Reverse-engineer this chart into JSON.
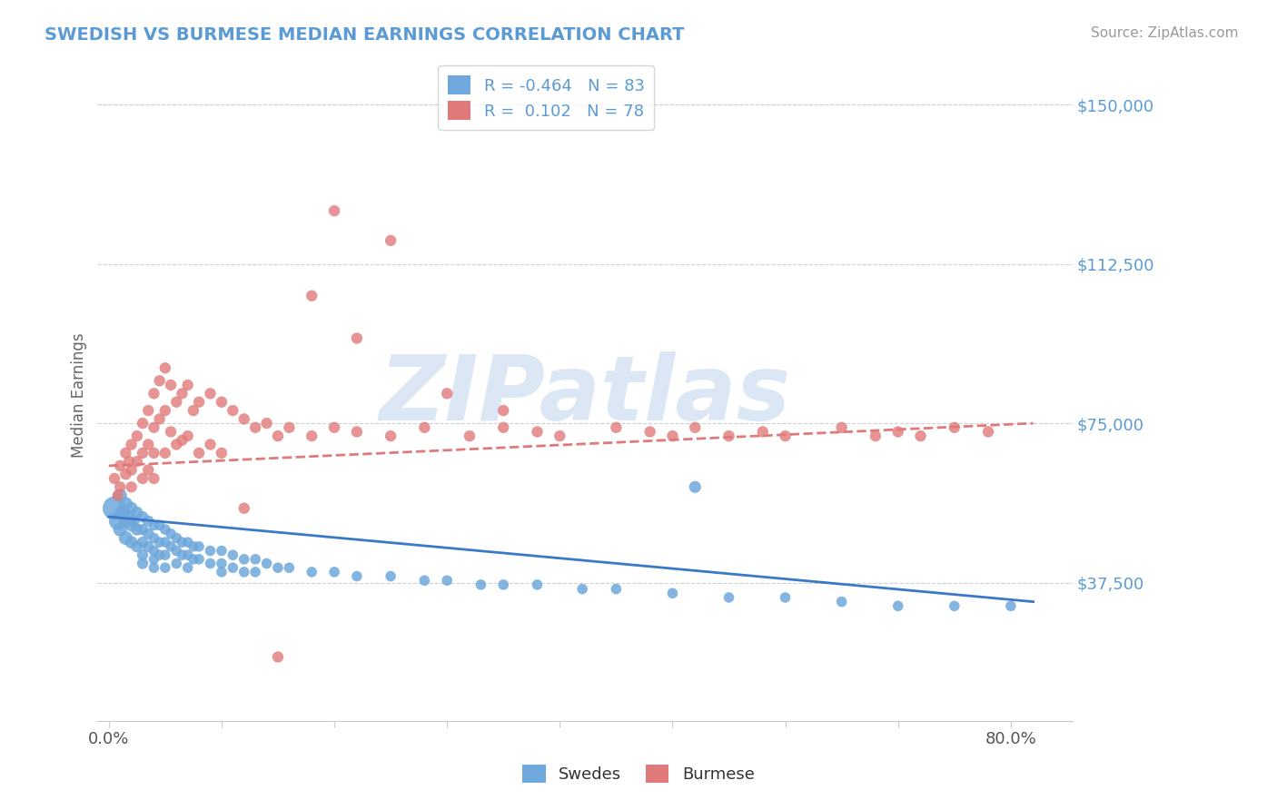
{
  "title": "SWEDISH VS BURMESE MEDIAN EARNINGS CORRELATION CHART",
  "source_text": "Source: ZipAtlas.com",
  "ylabel": "Median Earnings",
  "xtick_labels": [
    "0.0%",
    "",
    "",
    "",
    "",
    "",
    "",
    "",
    "80.0%"
  ],
  "xticks": [
    0.0,
    0.1,
    0.2,
    0.3,
    0.4,
    0.5,
    0.6,
    0.7,
    0.8
  ],
  "xmin": -0.01,
  "xmax": 0.855,
  "ymin": 5000,
  "ymax": 158000,
  "blue_color": "#6fa8dc",
  "pink_color": "#e07a7a",
  "blue_line_color": "#3a78c8",
  "pink_line_color": "#e07a7a",
  "legend_R_blue": "-0.464",
  "legend_N_blue": "83",
  "legend_R_pink": "0.102",
  "legend_N_pink": "78",
  "title_color": "#5b9bd5",
  "source_color": "#999999",
  "watermark_text": "ZIPatlas",
  "watermark_color": "#c5d8f0",
  "grid_color": "#d0d0d0",
  "background_color": "#ffffff",
  "ylabel_color": "#666666",
  "ytick_color": "#5b9bd5",
  "blue_scatter_x": [
    0.005,
    0.008,
    0.01,
    0.01,
    0.012,
    0.015,
    0.015,
    0.015,
    0.018,
    0.02,
    0.02,
    0.02,
    0.022,
    0.025,
    0.025,
    0.025,
    0.03,
    0.03,
    0.03,
    0.03,
    0.03,
    0.035,
    0.035,
    0.035,
    0.04,
    0.04,
    0.04,
    0.04,
    0.04,
    0.045,
    0.045,
    0.045,
    0.05,
    0.05,
    0.05,
    0.05,
    0.055,
    0.055,
    0.06,
    0.06,
    0.06,
    0.065,
    0.065,
    0.07,
    0.07,
    0.07,
    0.075,
    0.075,
    0.08,
    0.08,
    0.09,
    0.09,
    0.1,
    0.1,
    0.1,
    0.11,
    0.11,
    0.12,
    0.12,
    0.13,
    0.13,
    0.14,
    0.15,
    0.16,
    0.18,
    0.2,
    0.22,
    0.25,
    0.28,
    0.3,
    0.33,
    0.35,
    0.38,
    0.42,
    0.45,
    0.5,
    0.55,
    0.6,
    0.65,
    0.7,
    0.75,
    0.8,
    0.52
  ],
  "blue_scatter_y": [
    55000,
    52000,
    58000,
    50000,
    54000,
    56000,
    52000,
    48000,
    53000,
    55000,
    51000,
    47000,
    52000,
    54000,
    50000,
    46000,
    53000,
    50000,
    47000,
    44000,
    42000,
    52000,
    49000,
    46000,
    51000,
    48000,
    45000,
    43000,
    41000,
    51000,
    47000,
    44000,
    50000,
    47000,
    44000,
    41000,
    49000,
    46000,
    48000,
    45000,
    42000,
    47000,
    44000,
    47000,
    44000,
    41000,
    46000,
    43000,
    46000,
    43000,
    45000,
    42000,
    45000,
    42000,
    40000,
    44000,
    41000,
    43000,
    40000,
    43000,
    40000,
    42000,
    41000,
    41000,
    40000,
    40000,
    39000,
    39000,
    38000,
    38000,
    37000,
    37000,
    37000,
    36000,
    36000,
    35000,
    34000,
    34000,
    33000,
    32000,
    32000,
    32000,
    60000
  ],
  "blue_scatter_sizes": [
    350,
    200,
    120,
    120,
    120,
    120,
    120,
    120,
    100,
    100,
    100,
    100,
    90,
    90,
    90,
    90,
    80,
    80,
    80,
    80,
    80,
    80,
    80,
    80,
    70,
    70,
    70,
    70,
    70,
    70,
    70,
    70,
    70,
    70,
    70,
    70,
    70,
    70,
    70,
    70,
    70,
    70,
    70,
    70,
    70,
    70,
    70,
    70,
    70,
    70,
    70,
    70,
    70,
    70,
    70,
    70,
    70,
    70,
    70,
    70,
    70,
    70,
    70,
    70,
    70,
    70,
    70,
    70,
    70,
    70,
    70,
    70,
    70,
    70,
    70,
    70,
    70,
    70,
    70,
    70,
    70,
    70,
    90
  ],
  "pink_scatter_x": [
    0.005,
    0.008,
    0.01,
    0.01,
    0.015,
    0.015,
    0.018,
    0.02,
    0.02,
    0.02,
    0.025,
    0.025,
    0.03,
    0.03,
    0.03,
    0.035,
    0.035,
    0.035,
    0.04,
    0.04,
    0.04,
    0.04,
    0.045,
    0.045,
    0.05,
    0.05,
    0.05,
    0.055,
    0.055,
    0.06,
    0.06,
    0.065,
    0.065,
    0.07,
    0.07,
    0.075,
    0.08,
    0.08,
    0.09,
    0.09,
    0.1,
    0.1,
    0.11,
    0.12,
    0.13,
    0.14,
    0.15,
    0.16,
    0.18,
    0.2,
    0.22,
    0.25,
    0.28,
    0.32,
    0.35,
    0.38,
    0.4,
    0.45,
    0.48,
    0.5,
    0.52,
    0.55,
    0.58,
    0.6,
    0.65,
    0.68,
    0.7,
    0.72,
    0.75,
    0.78,
    0.2,
    0.25,
    0.18,
    0.3,
    0.22,
    0.35,
    0.12,
    0.15
  ],
  "pink_scatter_y": [
    62000,
    58000,
    65000,
    60000,
    68000,
    63000,
    66000,
    70000,
    64000,
    60000,
    72000,
    66000,
    75000,
    68000,
    62000,
    78000,
    70000,
    64000,
    82000,
    74000,
    68000,
    62000,
    85000,
    76000,
    88000,
    78000,
    68000,
    84000,
    73000,
    80000,
    70000,
    82000,
    71000,
    84000,
    72000,
    78000,
    80000,
    68000,
    82000,
    70000,
    80000,
    68000,
    78000,
    76000,
    74000,
    75000,
    72000,
    74000,
    72000,
    74000,
    73000,
    72000,
    74000,
    72000,
    74000,
    73000,
    72000,
    74000,
    73000,
    72000,
    74000,
    72000,
    73000,
    72000,
    74000,
    72000,
    73000,
    72000,
    74000,
    73000,
    125000,
    118000,
    105000,
    82000,
    95000,
    78000,
    55000,
    20000
  ],
  "pink_scatter_sizes": [
    80,
    80,
    80,
    80,
    80,
    80,
    80,
    80,
    80,
    80,
    80,
    80,
    80,
    80,
    80,
    80,
    80,
    80,
    80,
    80,
    80,
    80,
    80,
    80,
    80,
    80,
    80,
    80,
    80,
    80,
    80,
    80,
    80,
    80,
    80,
    80,
    80,
    80,
    80,
    80,
    80,
    80,
    80,
    80,
    80,
    80,
    80,
    80,
    80,
    80,
    80,
    80,
    80,
    80,
    80,
    80,
    80,
    80,
    80,
    80,
    80,
    80,
    80,
    80,
    80,
    80,
    80,
    80,
    80,
    80,
    80,
    80,
    80,
    80,
    80,
    80,
    80,
    80
  ],
  "blue_line_x0": 0.0,
  "blue_line_x1": 0.82,
  "blue_line_y0": 53000,
  "blue_line_y1": 33000,
  "pink_line_x0": 0.0,
  "pink_line_x1": 0.82,
  "pink_line_y0": 65000,
  "pink_line_y1": 75000
}
